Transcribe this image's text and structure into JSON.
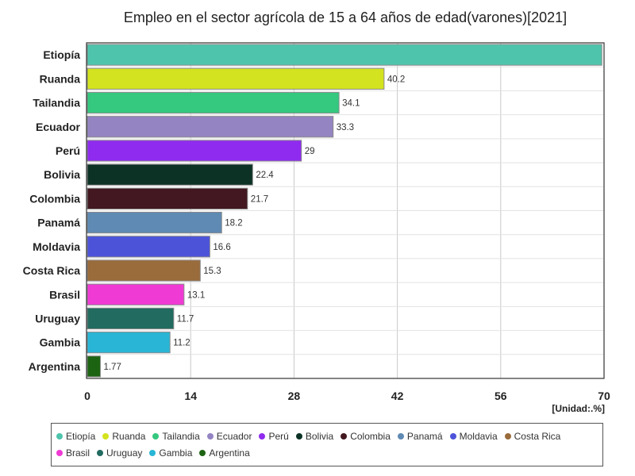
{
  "chart_data": {
    "type": "bar",
    "orientation": "horizontal",
    "title": "Empleo en el sector agrícola de 15 a 64 años de edad(varones)[2021]",
    "unit_label": "[Unidad:.%]",
    "categories": [
      "Etiopía",
      "Ruanda",
      "Tailandia",
      "Ecuador",
      "Perú",
      "Bolivia",
      "Colombia",
      "Panamá",
      "Moldavia",
      "Costa Rica",
      "Brasil",
      "Uruguay",
      "Gambia",
      "Argentina"
    ],
    "values": [
      69.7,
      40.2,
      34.1,
      33.3,
      29,
      22.4,
      21.7,
      18.2,
      16.6,
      15.3,
      13.1,
      11.7,
      11.2,
      1.77
    ],
    "value_labels": [
      "",
      "40.2",
      "34.1",
      "33.3",
      "29",
      "22.4",
      "21.7",
      "18.2",
      "16.6",
      "15.3",
      "13.1",
      "11.7",
      "11.2",
      "1.77"
    ],
    "colors": [
      "#4fc4ad",
      "#d4e31f",
      "#35c87f",
      "#9484c2",
      "#8f2bef",
      "#0c3226",
      "#431820",
      "#5e8ab3",
      "#4d53d9",
      "#9a6b3b",
      "#f03ad4",
      "#226b60",
      "#29b6d6",
      "#1d6412"
    ],
    "xlim": [
      0,
      70
    ],
    "xticks": [
      "0",
      "14",
      "28",
      "42",
      "56",
      "70"
    ],
    "grid": true,
    "legend_position": "bottom"
  }
}
